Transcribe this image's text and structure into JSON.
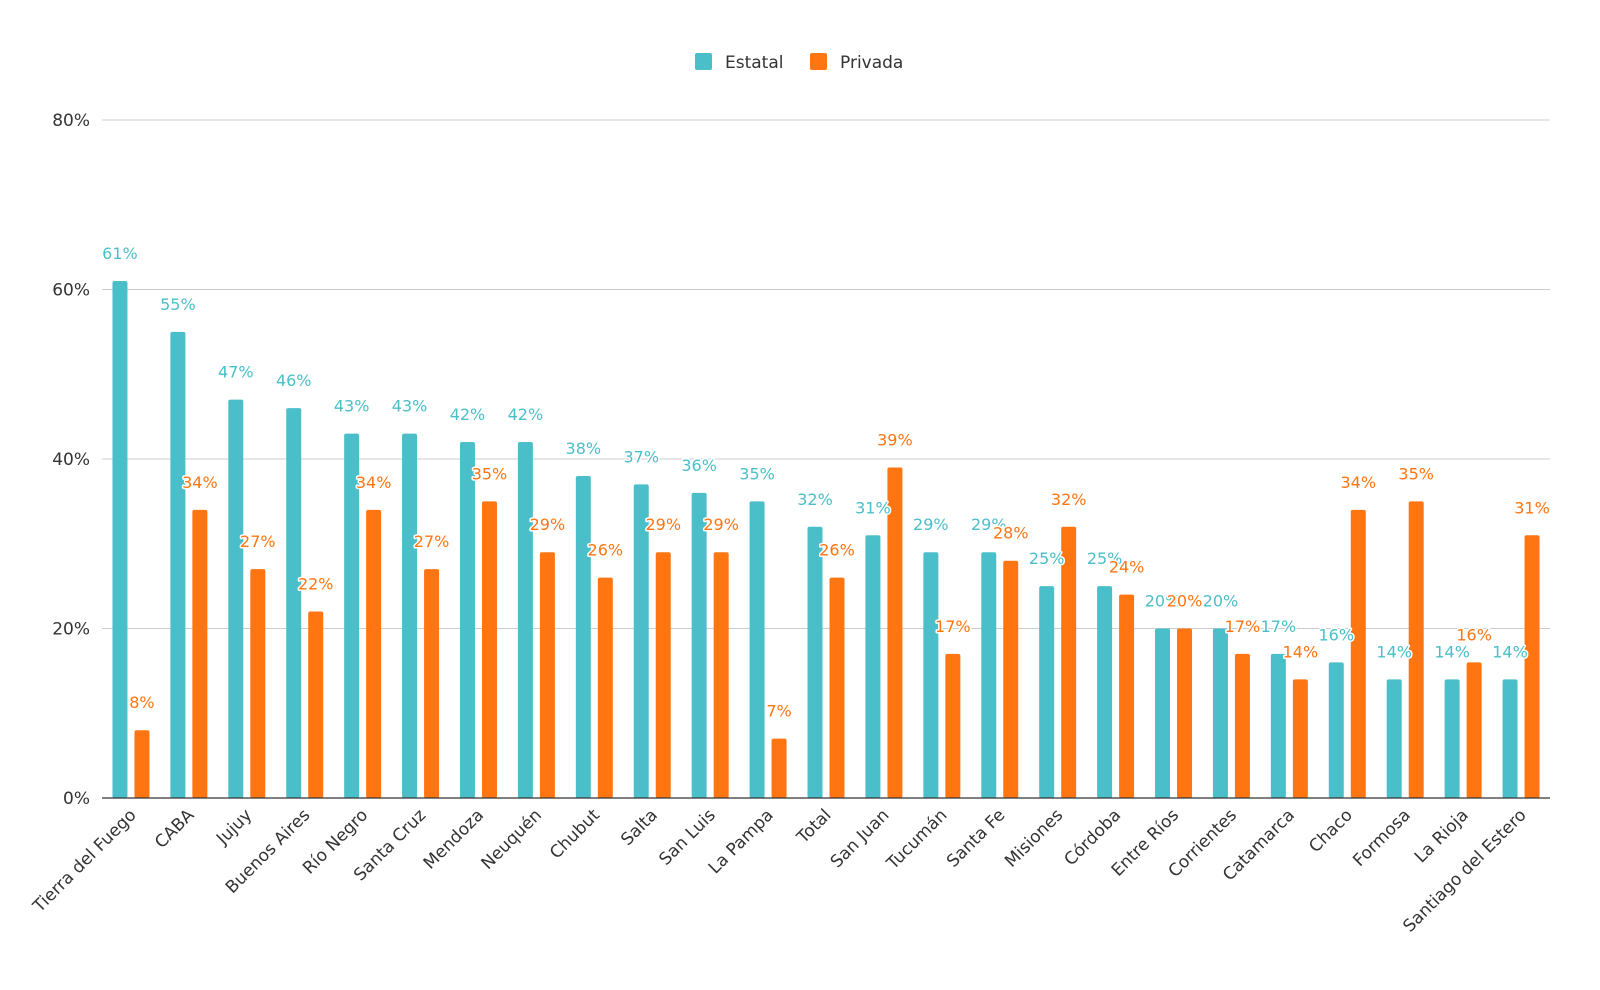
{
  "chart_data": {
    "type": "bar",
    "categories": [
      "Tierra del Fuego",
      "CABA",
      "Jujuy",
      "Buenos Aires",
      "Río Negro",
      "Santa Cruz",
      "Mendoza",
      "Neuquén",
      "Chubut",
      "Salta",
      "San Luis",
      "La Pampa",
      "Total",
      "San Juan",
      "Tucumán",
      "Santa Fe",
      "Misiones",
      "Córdoba",
      "Entre Ríos",
      "Corrientes",
      "Catamarca",
      "Chaco",
      "Formosa",
      "La Rioja",
      "Santiago del Estero"
    ],
    "series": [
      {
        "name": "Estatal",
        "color": "#4bbfc9",
        "values": [
          61,
          55,
          47,
          46,
          43,
          43,
          42,
          42,
          38,
          37,
          36,
          35,
          32,
          31,
          29,
          29,
          25,
          25,
          20,
          20,
          17,
          16,
          14,
          14,
          14
        ],
        "labels": [
          "61%",
          "55%",
          "47%",
          "46%",
          "43%",
          "43%",
          "42%",
          "42%",
          "38%",
          "37%",
          "36%",
          "35%",
          "32%",
          "31%",
          "29%",
          "29%",
          "25%",
          "25%",
          "20%",
          "20%",
          "17%",
          "16%",
          "14%",
          "14%",
          "14%"
        ]
      },
      {
        "name": "Privada",
        "color": "#ff7512",
        "values": [
          8,
          34,
          27,
          22,
          34,
          27,
          35,
          29,
          26,
          29,
          29,
          7,
          26,
          39,
          17,
          28,
          32,
          24,
          20,
          17,
          14,
          34,
          35,
          16,
          31
        ],
        "labels": [
          "8%",
          "34%",
          "27%",
          "22%",
          "34%",
          "27%",
          "35%",
          "29%",
          "26%",
          "29%",
          "29%",
          "7%",
          "26%",
          "39%",
          "17%",
          "28%",
          "32%",
          "24%",
          "20%",
          "17%",
          "14%",
          "34%",
          "35%",
          "16%",
          "31%"
        ]
      }
    ],
    "yticks": [
      "0%",
      "20%",
      "40%",
      "60%",
      "80%"
    ],
    "ylim": [
      0,
      80
    ],
    "grid": true,
    "legend_position": "top-center",
    "title": "",
    "xlabel": "",
    "ylabel": ""
  }
}
